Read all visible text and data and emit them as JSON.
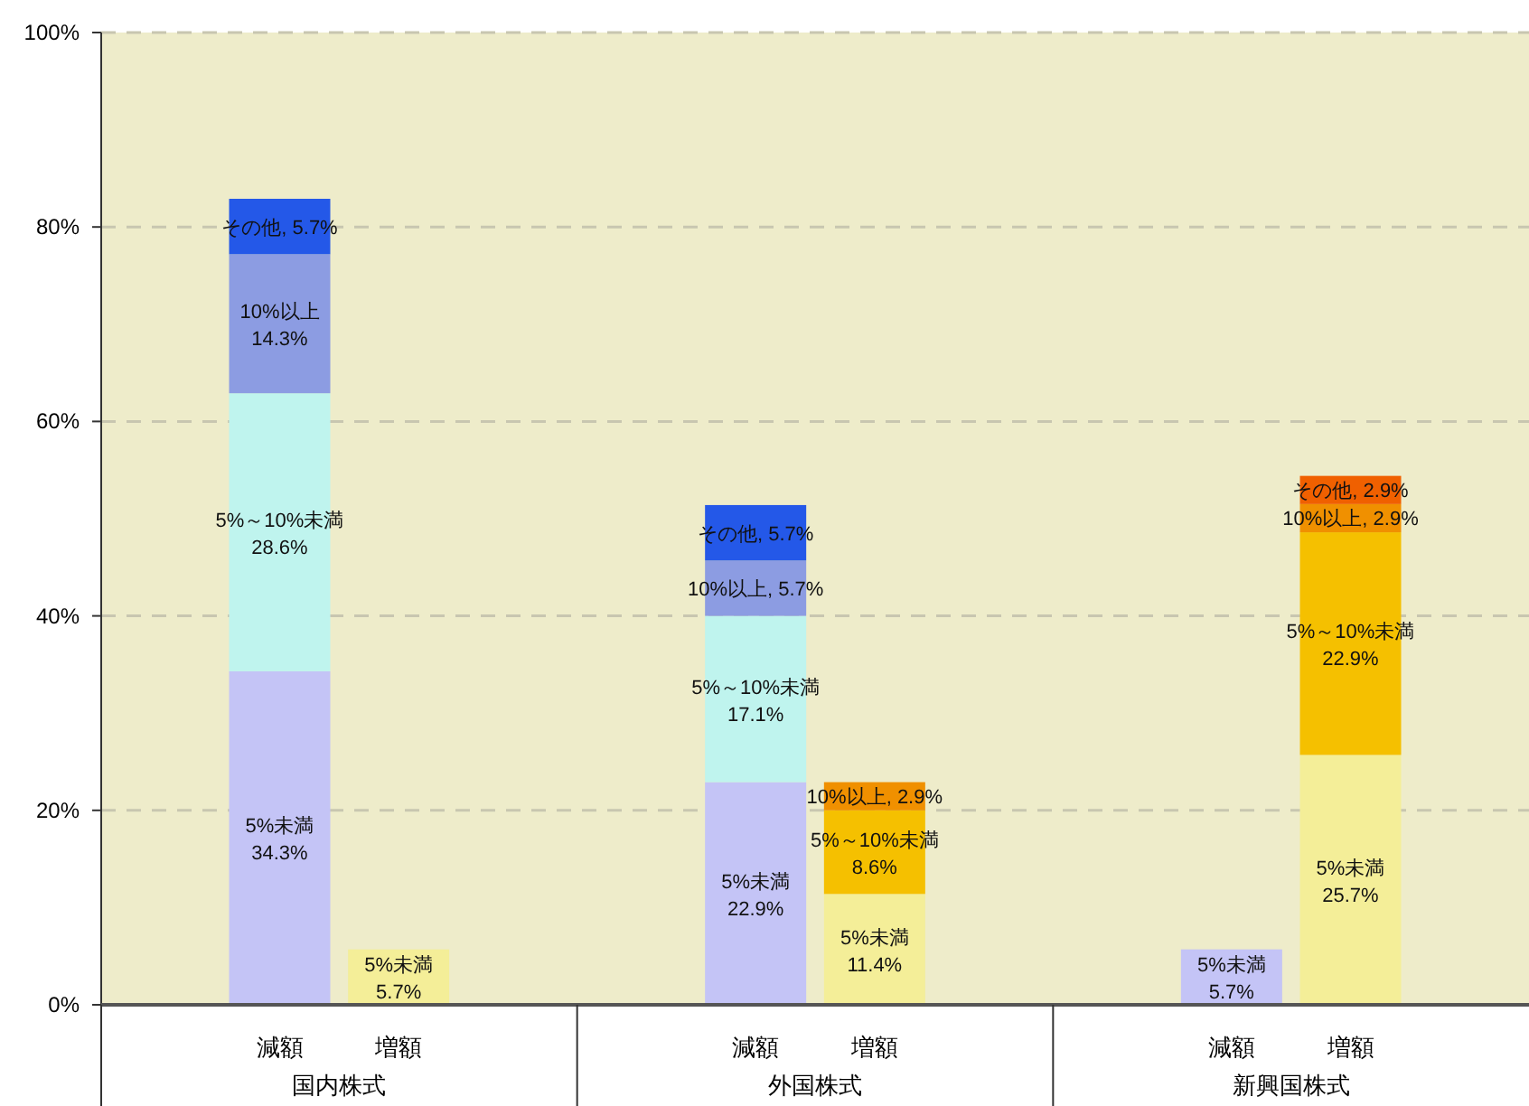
{
  "chart_data": {
    "type": "bar",
    "stacked": true,
    "categories": [
      null,
      "減額",
      "増額",
      null,
      null,
      "減額",
      "増額",
      null,
      null,
      "減額",
      "増額",
      null
    ],
    "annotations": [
      "国内株式",
      "外国株式",
      "新興国株式"
    ],
    "ylim": [
      0,
      100
    ],
    "yticks": [
      {
        "value": 0,
        "label": "0%"
      },
      {
        "value": 20,
        "label": "20%"
      },
      {
        "value": 40,
        "label": "40%"
      },
      {
        "value": 60,
        "label": "60%"
      },
      {
        "value": 80,
        "label": "80%"
      },
      {
        "value": 100,
        "label": "100%"
      }
    ],
    "grid": "y",
    "series": [
      {
        "name": "5%未満",
        "values": [
          null,
          34.3,
          5.7,
          null,
          null,
          22.9,
          11.4,
          null,
          null,
          5.7,
          25.7,
          null
        ],
        "colors": [
          null,
          "#c4c4f6",
          "#f4ee98",
          null,
          null,
          "#c4c4f6",
          "#f4ee98",
          null,
          null,
          "#c4c4f6",
          "#f4ee98",
          null
        ],
        "value_labels": [
          null,
          "34.3%",
          "5.7%",
          null,
          null,
          "22.9%",
          "11.4%",
          null,
          null,
          "5.7%",
          "25.7%",
          null
        ]
      },
      {
        "name": "5%～10%未満",
        "values": [
          null,
          28.6,
          null,
          null,
          null,
          17.1,
          8.6,
          null,
          null,
          null,
          22.9,
          null
        ],
        "colors": [
          null,
          "#bff4ee",
          null,
          null,
          null,
          "#bff4ee",
          "#f5c000",
          null,
          null,
          null,
          "#f5c000",
          null
        ],
        "value_labels": [
          null,
          "28.6%",
          null,
          null,
          null,
          "17.1%",
          "8.6%",
          null,
          null,
          null,
          "22.9%",
          null
        ]
      },
      {
        "name": "10%以上",
        "values": [
          null,
          14.3,
          null,
          null,
          null,
          5.7,
          2.9,
          null,
          null,
          null,
          2.9,
          null
        ],
        "colors": [
          null,
          "#8c9ce2",
          null,
          null,
          null,
          "#8c9ce2",
          "#f09000",
          null,
          null,
          null,
          "#f09000",
          null
        ],
        "value_labels": [
          null,
          "14.3%",
          null,
          null,
          null,
          ", 5.7%",
          ", 2.9%",
          null,
          null,
          null,
          ", 2.9%",
          null
        ]
      },
      {
        "name": "その他",
        "values": [
          null,
          5.7,
          null,
          null,
          null,
          5.7,
          null,
          null,
          null,
          null,
          2.9,
          null
        ],
        "colors": [
          null,
          "#2458e8",
          null,
          null,
          null,
          "#2458e8",
          null,
          null,
          null,
          null,
          "#f06000",
          null
        ],
        "value_labels": [
          null,
          ", 5.7%",
          null,
          null,
          null,
          ", 5.7%",
          null,
          null,
          null,
          null,
          ", 2.9%",
          null
        ]
      }
    ]
  }
}
